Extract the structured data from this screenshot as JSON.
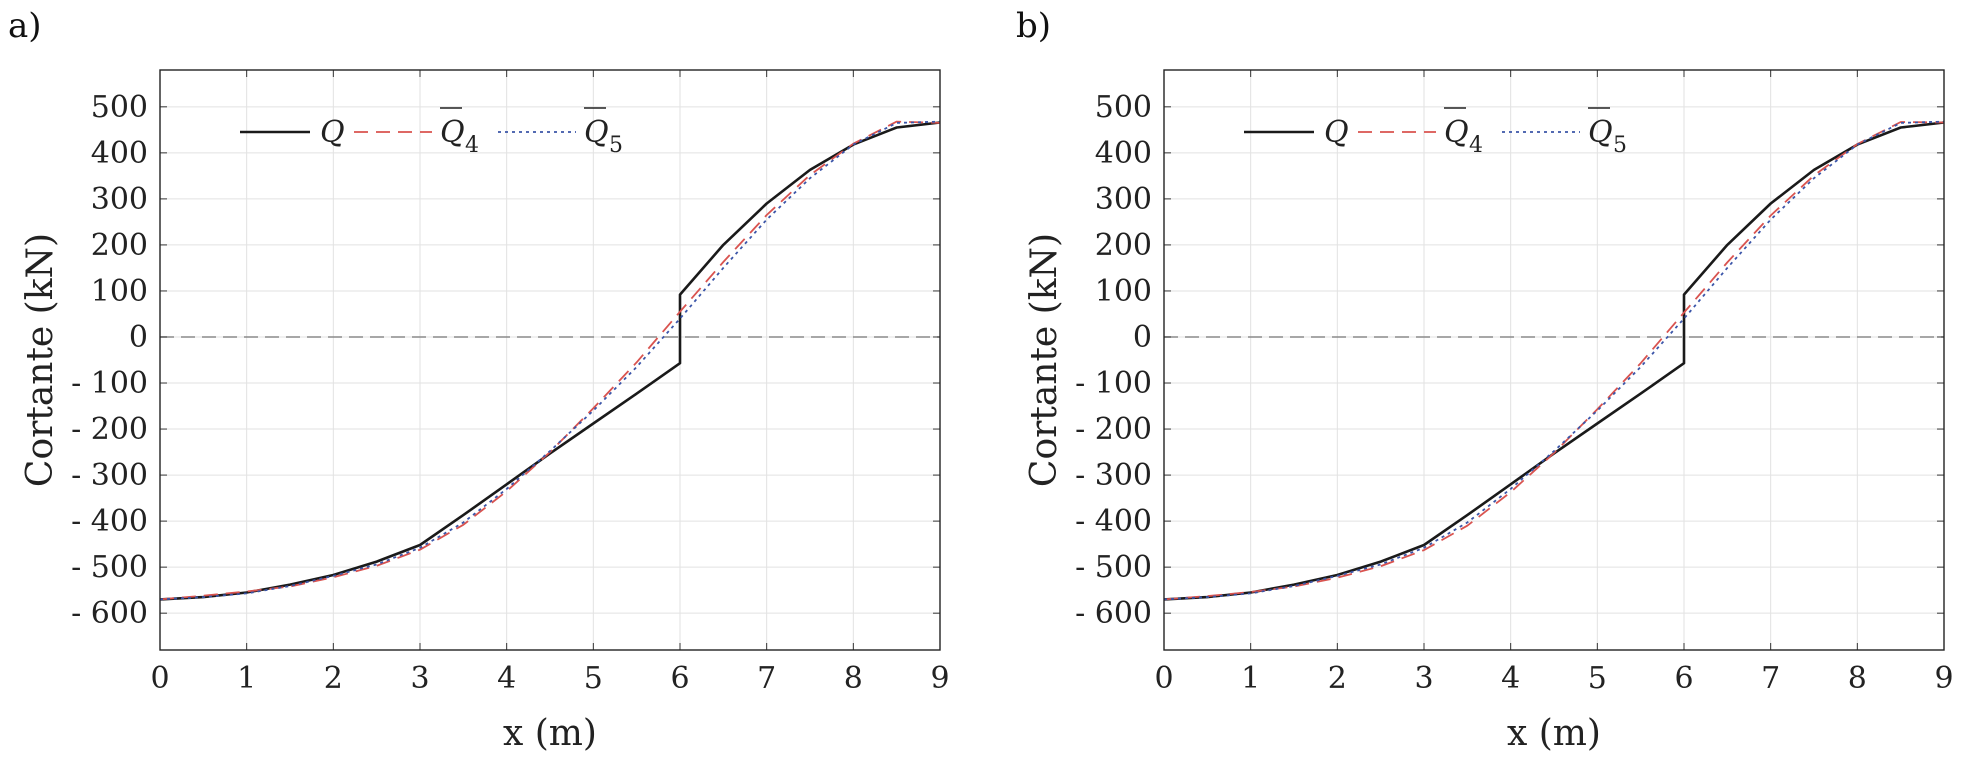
{
  "chart_data": [
    {
      "panel_label": "a)",
      "type": "line",
      "xlabel": "x (m)",
      "ylabel": "Cortante (kN)",
      "xlim": [
        0,
        9
      ],
      "ylim": [
        -680,
        580
      ],
      "x_ticks": [
        0,
        1,
        2,
        3,
        4,
        5,
        6,
        7,
        8,
        9
      ],
      "x_tick_labels": [
        "0",
        "1",
        "2",
        "3",
        "4",
        "5",
        "6",
        "7",
        "8",
        "9"
      ],
      "y_ticks": [
        500,
        400,
        300,
        200,
        100,
        0,
        -100,
        -200,
        -300,
        -400,
        -500,
        -600
      ],
      "y_tick_labels": [
        "500",
        "400",
        "300",
        "200",
        "100",
        "0",
        "- 100",
        "- 200",
        "- 300",
        "- 400",
        "- 500",
        "- 600"
      ],
      "grid": true,
      "legend_position": "top-left",
      "zero_line": true,
      "series": [
        {
          "name": "Q",
          "legend_label": "Q",
          "color": "#1a1a1a",
          "dash": "solid",
          "x": [
            0,
            0.5,
            1,
            1.5,
            2,
            2.5,
            3,
            3.5,
            4,
            4.5,
            5,
            5.5,
            6,
            6,
            6.5,
            7,
            7.5,
            8,
            8.5,
            9
          ],
          "y": [
            -570,
            -565,
            -555,
            -538,
            -517,
            -488,
            -452,
            -387,
            -320,
            -253,
            -188,
            -123,
            -57,
            92,
            200,
            290,
            363,
            418,
            455,
            466
          ]
        },
        {
          "name": "Q̄4",
          "legend_label": "Q",
          "legend_sub": "4",
          "color": "#d9534f",
          "dash": "dashed",
          "x": [
            0,
            0.5,
            1,
            1.5,
            2,
            2.5,
            3,
            3.5,
            4,
            4.5,
            5,
            5.5,
            6,
            6.5,
            7,
            7.5,
            8,
            8.5,
            9
          ],
          "y": [
            -570,
            -562,
            -553,
            -542,
            -522,
            -497,
            -462,
            -408,
            -335,
            -250,
            -155,
            -55,
            55,
            163,
            265,
            352,
            420,
            468,
            465
          ]
        },
        {
          "name": "Q̄5",
          "legend_label": "Q",
          "legend_sub": "5",
          "color": "#3b55a8",
          "dash": "dotted",
          "x": [
            0,
            0.5,
            1,
            1.5,
            2,
            2.5,
            3,
            3.5,
            4,
            4.5,
            5,
            5.5,
            6,
            6.5,
            7,
            7.5,
            8,
            8.5,
            9
          ],
          "y": [
            -570,
            -565,
            -557,
            -541,
            -519,
            -494,
            -458,
            -403,
            -330,
            -248,
            -160,
            -65,
            40,
            150,
            255,
            345,
            418,
            465,
            468
          ]
        }
      ]
    },
    {
      "panel_label": "b)",
      "type": "line",
      "xlabel": "x (m)",
      "ylabel": "Cortante (kN)",
      "xlim": [
        0,
        9
      ],
      "ylim": [
        -680,
        580
      ],
      "x_ticks": [
        0,
        1,
        2,
        3,
        4,
        5,
        6,
        7,
        8,
        9
      ],
      "x_tick_labels": [
        "0",
        "1",
        "2",
        "3",
        "4",
        "5",
        "6",
        "7",
        "8",
        "9"
      ],
      "y_ticks": [
        500,
        400,
        300,
        200,
        100,
        0,
        -100,
        -200,
        -300,
        -400,
        -500,
        -600
      ],
      "y_tick_labels": [
        "500",
        "400",
        "300",
        "200",
        "100",
        "0",
        "- 100",
        "- 200",
        "- 300",
        "- 400",
        "- 500",
        "- 600"
      ],
      "grid": true,
      "legend_position": "top-left",
      "zero_line": true,
      "series": [
        {
          "name": "Q",
          "legend_label": "Q",
          "color": "#1a1a1a",
          "dash": "solid",
          "x": [
            0,
            0.5,
            1,
            1.5,
            2,
            2.5,
            3,
            3.5,
            4,
            4.5,
            5,
            5.5,
            6,
            6,
            6.5,
            7,
            7.5,
            8,
            8.5,
            9
          ],
          "y": [
            -570,
            -565,
            -555,
            -538,
            -517,
            -488,
            -452,
            -387,
            -320,
            -253,
            -188,
            -123,
            -57,
            92,
            200,
            290,
            363,
            418,
            455,
            466
          ]
        },
        {
          "name": "Q̄4",
          "legend_label": "Q",
          "legend_sub": "4",
          "color": "#d9534f",
          "dash": "dashed",
          "x": [
            0,
            0.5,
            1,
            1.5,
            2,
            2.5,
            3,
            3.5,
            4,
            4.5,
            5,
            5.5,
            6,
            6.5,
            7,
            7.5,
            8,
            8.5,
            9
          ],
          "y": [
            -570,
            -563,
            -554,
            -542,
            -523,
            -498,
            -463,
            -410,
            -337,
            -252,
            -157,
            -57,
            53,
            162,
            264,
            351,
            419,
            467,
            466
          ]
        },
        {
          "name": "Q̄5",
          "legend_label": "Q",
          "legend_sub": "5",
          "color": "#3b55a8",
          "dash": "dotted",
          "x": [
            0,
            0.5,
            1,
            1.5,
            2,
            2.5,
            3,
            3.5,
            4,
            4.5,
            5,
            5.5,
            6,
            6.5,
            7,
            7.5,
            8,
            8.5,
            9
          ],
          "y": [
            -570,
            -565,
            -557,
            -541,
            -519,
            -494,
            -458,
            -403,
            -330,
            -248,
            -160,
            -65,
            40,
            150,
            255,
            345,
            418,
            465,
            468
          ]
        }
      ]
    }
  ]
}
